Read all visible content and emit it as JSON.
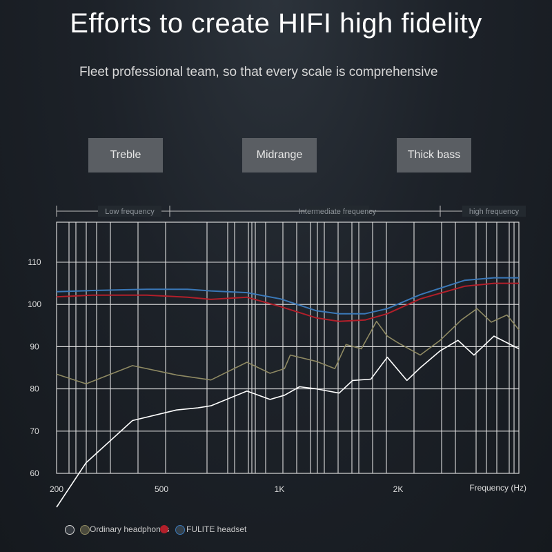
{
  "header": {
    "title": "Efforts to create HIFI high fidelity",
    "subtitle": "Fleet professional team, so that every scale is comprehensive"
  },
  "tags": [
    "Treble",
    "Midrange",
    "Thick bass"
  ],
  "bands": [
    "Low frequency",
    "Intermediate frequency",
    "high frequency"
  ],
  "legend": {
    "ordinary_label": "Ordinary headphones",
    "fulite_label": "FULITE headset",
    "colors": {
      "white": "#ffffff",
      "gold": "#8f8a63",
      "red": "#b21f2a",
      "blue": "#3a78b8"
    }
  },
  "chart_data": {
    "type": "line",
    "xlabel": "Frequency (Hz)",
    "ylabel": "",
    "x_ticks": [
      {
        "label": "200",
        "value": 200
      },
      {
        "label": "500",
        "value": 500
      },
      {
        "label": "1K",
        "value": 1000
      },
      {
        "label": "2K",
        "value": 2000
      }
    ],
    "y_ticks": [
      60,
      70,
      80,
      90,
      100,
      110
    ],
    "ylim": [
      60,
      120
    ],
    "series": [
      {
        "color": "#3a78b8",
        "x": [
          200,
          250,
          350,
          450,
          520,
          650,
          800,
          1000,
          1150,
          1350,
          1550,
          1900,
          2500,
          3000,
          3500
        ],
        "y": [
          103,
          103.3,
          103.6,
          103.6,
          103.2,
          102.8,
          101.3,
          98.5,
          97.8,
          97.8,
          99,
          102.3,
          105.7,
          106.3,
          106.3
        ]
      },
      {
        "color": "#b21f2a",
        "x": [
          200,
          250,
          350,
          450,
          520,
          650,
          800,
          1000,
          1150,
          1350,
          1550,
          1900,
          2500,
          3000,
          3500
        ],
        "y": [
          101.8,
          102.2,
          102.2,
          101.7,
          101.2,
          101.7,
          99.5,
          96.8,
          96,
          96.3,
          97.8,
          101.3,
          104.3,
          105,
          105
        ]
      },
      {
        "color": "#8f8a63",
        "x": [
          200,
          240,
          320,
          420,
          520,
          650,
          750,
          820,
          850,
          1000,
          1120,
          1200,
          1320,
          1450,
          1550,
          1650,
          1900,
          2150,
          2450,
          2700,
          2950,
          3250,
          3500
        ],
        "y": [
          83.5,
          81.2,
          85.5,
          83.3,
          82.1,
          86.3,
          83.7,
          84.8,
          88,
          86.5,
          84.8,
          90.5,
          89.5,
          96,
          92.5,
          91,
          88,
          91.5,
          96.3,
          99,
          95.8,
          97.5,
          94
        ]
      },
      {
        "color": "#ffffff",
        "x": [
          200,
          240,
          320,
          420,
          480,
          520,
          650,
          750,
          820,
          900,
          1000,
          1150,
          1250,
          1400,
          1550,
          1750,
          1900,
          2150,
          2400,
          2650,
          3000,
          3500
        ],
        "y": [
          52,
          62.5,
          72.5,
          75,
          75.5,
          76,
          79.5,
          77.5,
          78.5,
          80.5,
          80,
          79,
          82,
          82.3,
          87.5,
          82,
          85,
          89,
          91.5,
          88,
          92.5,
          89.5
        ]
      }
    ]
  }
}
